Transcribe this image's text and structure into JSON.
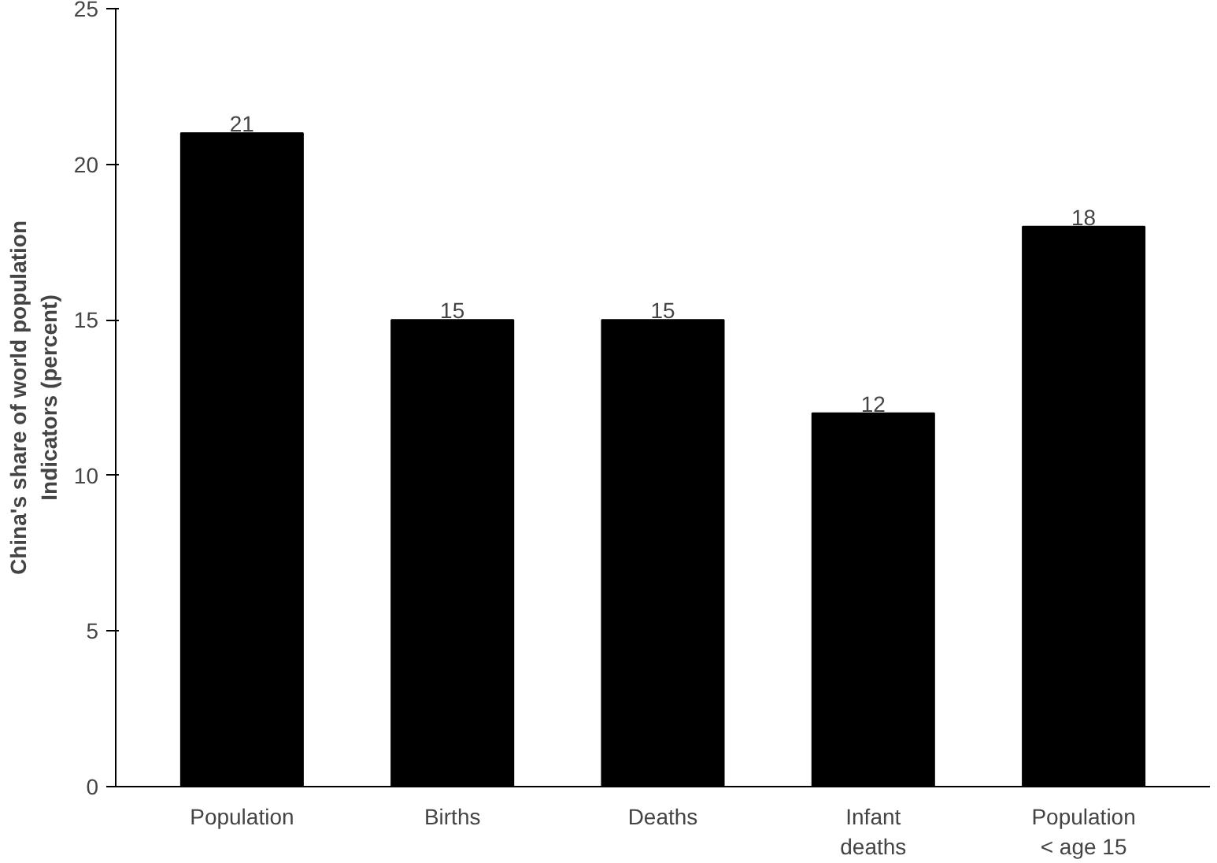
{
  "chart_data": {
    "type": "bar",
    "ylabel": "China's share of world population\nIndicators (percent)",
    "categories": [
      "Population",
      "Births",
      "Deaths",
      "Infant\ndeaths",
      "Population\n< age 15"
    ],
    "values": [
      21,
      15,
      15,
      12,
      18
    ],
    "color": "#000000",
    "ylim": [
      0,
      25
    ],
    "yticks": [
      0,
      5,
      10,
      15,
      20,
      25
    ],
    "data_labels": true
  }
}
